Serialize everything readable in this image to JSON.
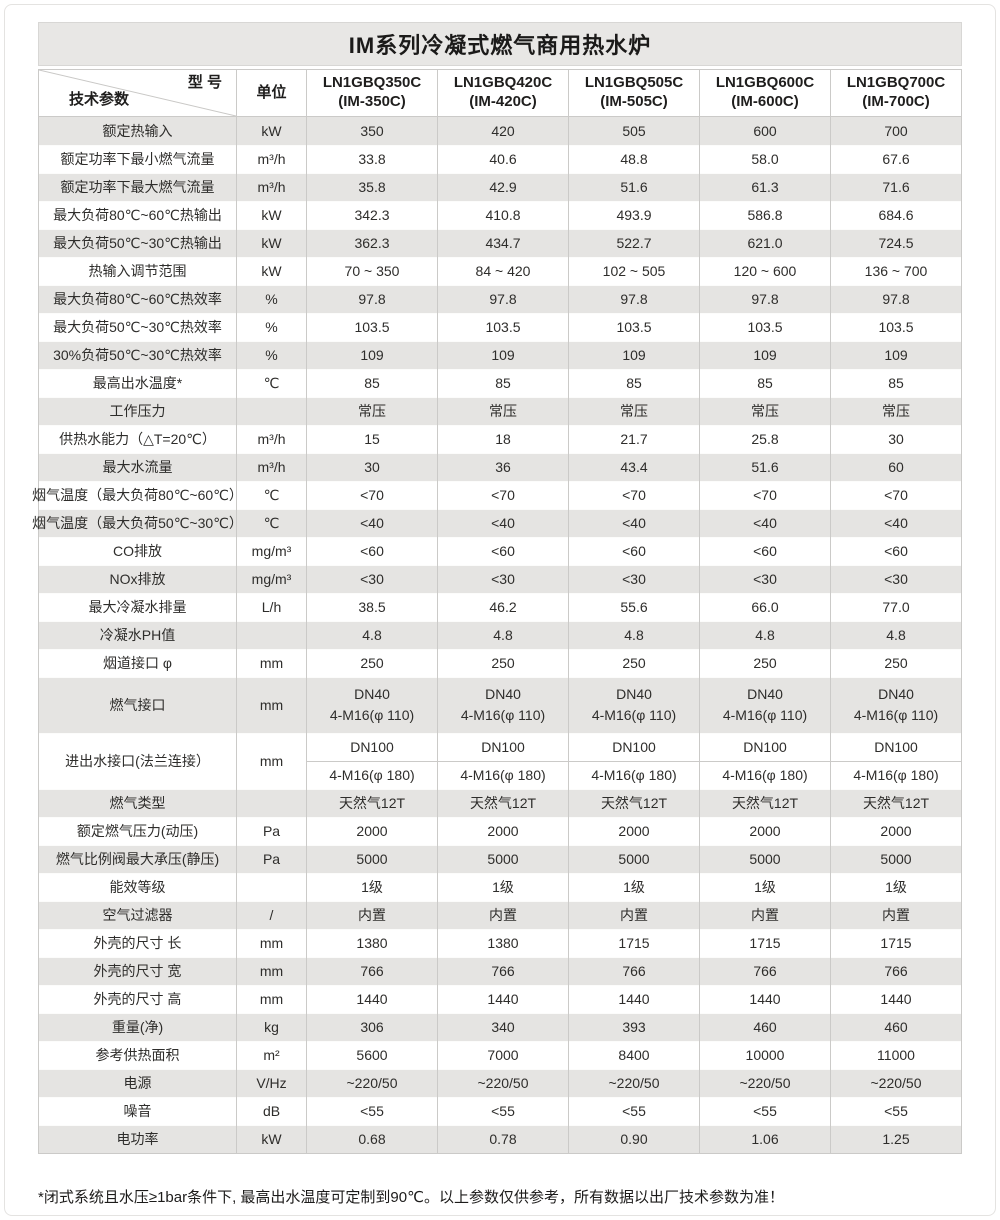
{
  "page": {
    "title": "IM系列冷凝式燃气商用热水炉",
    "footnote": "*闭式系统且水压≥1bar条件下, 最高出水温度可定制到90℃。以上参数仅供参考，所有数据以出厂技术参数为准！"
  },
  "colors": {
    "title_bar_bg": "#e8e7e5",
    "shaded_row_bg": "#e5e4e2",
    "border": "#cbcac8",
    "text": "#2e2d2b"
  },
  "table": {
    "corner": {
      "top_right": "型 号",
      "bottom_left": "技术参数"
    },
    "unit_header": "单位",
    "models": [
      {
        "line1": "LN1GBQ350C",
        "line2": "(IM-350C)"
      },
      {
        "line1": "LN1GBQ420C",
        "line2": "(IM-420C)"
      },
      {
        "line1": "LN1GBQ505C",
        "line2": "(IM-505C)"
      },
      {
        "line1": "LN1GBQ600C",
        "line2": "(IM-600C)"
      },
      {
        "line1": "LN1GBQ700C",
        "line2": "(IM-700C)"
      }
    ],
    "rows": [
      {
        "param": "额定热输入",
        "unit": "kW",
        "values": [
          "350",
          "420",
          "505",
          "600",
          "700"
        ],
        "shaded": true
      },
      {
        "param": "额定功率下最小燃气流量",
        "unit": "m³/h",
        "values": [
          "33.8",
          "40.6",
          "48.8",
          "58.0",
          "67.6"
        ],
        "shaded": false
      },
      {
        "param": "额定功率下最大燃气流量",
        "unit": "m³/h",
        "values": [
          "35.8",
          "42.9",
          "51.6",
          "61.3",
          "71.6"
        ],
        "shaded": true
      },
      {
        "param": "最大负荷80℃~60℃热输出",
        "unit": "kW",
        "values": [
          "342.3",
          "410.8",
          "493.9",
          "586.8",
          "684.6"
        ],
        "shaded": false
      },
      {
        "param": "最大负荷50℃~30℃热输出",
        "unit": "kW",
        "values": [
          "362.3",
          "434.7",
          "522.7",
          "621.0",
          "724.5"
        ],
        "shaded": true
      },
      {
        "param": "热输入调节范围",
        "unit": "kW",
        "values": [
          "70 ~ 350",
          "84 ~ 420",
          "102 ~ 505",
          "120 ~ 600",
          "136 ~ 700"
        ],
        "shaded": false
      },
      {
        "param": "最大负荷80℃~60℃热效率",
        "unit": "%",
        "values": [
          "97.8",
          "97.8",
          "97.8",
          "97.8",
          "97.8"
        ],
        "shaded": true
      },
      {
        "param": "最大负荷50℃~30℃热效率",
        "unit": "%",
        "values": [
          "103.5",
          "103.5",
          "103.5",
          "103.5",
          "103.5"
        ],
        "shaded": false
      },
      {
        "param": "30%负荷50℃~30℃热效率",
        "unit": "%",
        "values": [
          "109",
          "109",
          "109",
          "109",
          "109"
        ],
        "shaded": true
      },
      {
        "param": "最高出水温度*",
        "unit": "℃",
        "values": [
          "85",
          "85",
          "85",
          "85",
          "85"
        ],
        "shaded": false
      },
      {
        "param": "工作压力",
        "unit": "",
        "values": [
          "常压",
          "常压",
          "常压",
          "常压",
          "常压"
        ],
        "shaded": true
      },
      {
        "param": "供热水能力（△T=20℃）",
        "unit": "m³/h",
        "values": [
          "15",
          "18",
          "21.7",
          "25.8",
          "30"
        ],
        "shaded": false
      },
      {
        "param": "最大水流量",
        "unit": "m³/h",
        "values": [
          "30",
          "36",
          "43.4",
          "51.6",
          "60"
        ],
        "shaded": true
      },
      {
        "param": "烟气温度（最大负荷80℃~60℃）",
        "unit": "℃",
        "values": [
          "<70",
          "<70",
          "<70",
          "<70",
          "<70"
        ],
        "shaded": false
      },
      {
        "param": "烟气温度（最大负荷50℃~30℃）",
        "unit": "℃",
        "values": [
          "<40",
          "<40",
          "<40",
          "<40",
          "<40"
        ],
        "shaded": true
      },
      {
        "param": "CO排放",
        "unit": "mg/m³",
        "values": [
          "<60",
          "<60",
          "<60",
          "<60",
          "<60"
        ],
        "shaded": false
      },
      {
        "param": "NOx排放",
        "unit": "mg/m³",
        "values": [
          "<30",
          "<30",
          "<30",
          "<30",
          "<30"
        ],
        "shaded": true
      },
      {
        "param": "最大冷凝水排量",
        "unit": "L/h",
        "values": [
          "38.5",
          "46.2",
          "55.6",
          "66.0",
          "77.0"
        ],
        "shaded": false
      },
      {
        "param": "冷凝水PH值",
        "unit": "",
        "values": [
          "4.8",
          "4.8",
          "4.8",
          "4.8",
          "4.8"
        ],
        "shaded": true
      },
      {
        "param": "烟道接口 φ",
        "unit": "mm",
        "values": [
          "250",
          "250",
          "250",
          "250",
          "250"
        ],
        "shaded": false
      },
      {
        "param": "燃气接口",
        "unit": "mm",
        "type": "twoline",
        "values": [
          [
            "DN40",
            "4-M16(φ 110)"
          ],
          [
            "DN40",
            "4-M16(φ 110)"
          ],
          [
            "DN40",
            "4-M16(φ 110)"
          ],
          [
            "DN40",
            "4-M16(φ 110)"
          ],
          [
            "DN40",
            "4-M16(φ 110)"
          ]
        ],
        "shaded": true
      },
      {
        "param": "进出水接口(法兰连接）",
        "unit": "mm",
        "type": "split",
        "values": [
          [
            "DN100",
            "4-M16(φ 180)"
          ],
          [
            "DN100",
            "4-M16(φ 180)"
          ],
          [
            "DN100",
            "4-M16(φ 180)"
          ],
          [
            "DN100",
            "4-M16(φ 180)"
          ],
          [
            "DN100",
            "4-M16(φ 180)"
          ]
        ],
        "shaded": false
      },
      {
        "param": "燃气类型",
        "unit": "",
        "values": [
          "天然气12T",
          "天然气12T",
          "天然气12T",
          "天然气12T",
          "天然气12T"
        ],
        "shaded": true
      },
      {
        "param": "额定燃气压力(动压)",
        "unit": "Pa",
        "values": [
          "2000",
          "2000",
          "2000",
          "2000",
          "2000"
        ],
        "shaded": false
      },
      {
        "param": "燃气比例阀最大承压(静压)",
        "unit": "Pa",
        "values": [
          "5000",
          "5000",
          "5000",
          "5000",
          "5000"
        ],
        "shaded": true
      },
      {
        "param": "能效等级",
        "unit": "",
        "values": [
          "1级",
          "1级",
          "1级",
          "1级",
          "1级"
        ],
        "shaded": false
      },
      {
        "param": "空气过滤器",
        "unit": "/",
        "values": [
          "内置",
          "内置",
          "内置",
          "内置",
          "内置"
        ],
        "shaded": true
      },
      {
        "param": "外壳的尺寸 长",
        "unit": "mm",
        "values": [
          "1380",
          "1380",
          "1715",
          "1715",
          "1715"
        ],
        "shaded": false
      },
      {
        "param": "外壳的尺寸 宽",
        "unit": "mm",
        "values": [
          "766",
          "766",
          "766",
          "766",
          "766"
        ],
        "shaded": true
      },
      {
        "param": "外壳的尺寸 高",
        "unit": "mm",
        "values": [
          "1440",
          "1440",
          "1440",
          "1440",
          "1440"
        ],
        "shaded": false
      },
      {
        "param": "重量(净)",
        "unit": "kg",
        "values": [
          "306",
          "340",
          "393",
          "460",
          "460"
        ],
        "shaded": true
      },
      {
        "param": "参考供热面积",
        "unit": "m²",
        "values": [
          "5600",
          "7000",
          "8400",
          "10000",
          "11000"
        ],
        "shaded": false
      },
      {
        "param": "电源",
        "unit": "V/Hz",
        "values": [
          "~220/50",
          "~220/50",
          "~220/50",
          "~220/50",
          "~220/50"
        ],
        "shaded": true
      },
      {
        "param": "噪音",
        "unit": "dB",
        "values": [
          "<55",
          "<55",
          "<55",
          "<55",
          "<55"
        ],
        "shaded": false
      },
      {
        "param": "电功率",
        "unit": "kW",
        "values": [
          "0.68",
          "0.78",
          "0.90",
          "1.06",
          "1.25"
        ],
        "shaded": true
      }
    ]
  }
}
